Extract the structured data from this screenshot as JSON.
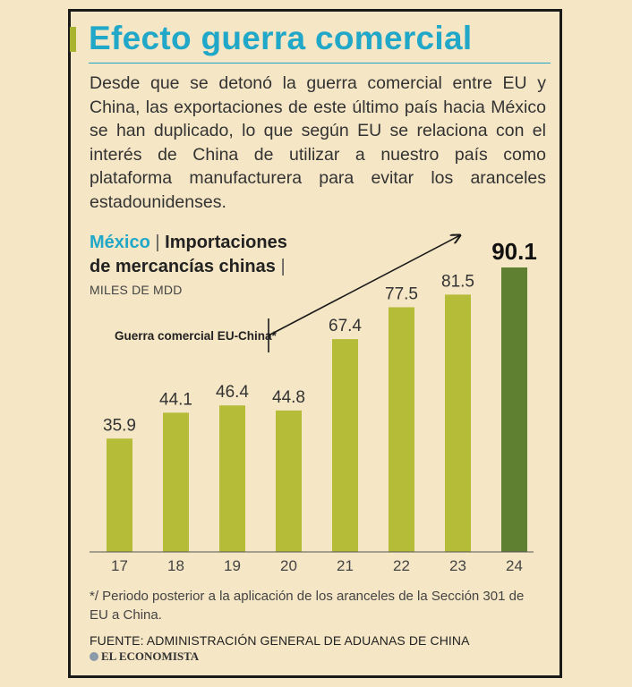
{
  "title": "Efecto guerra comercial",
  "intro": "Desde que se detonó la guerra comercial entre EU y China, las exportaciones de este último país hacia México se han duplicado, lo que según EU se relaciona con el interés de China de utilizar a nuestro país como plataforma manufacturera para evitar los aranceles estadounidenses.",
  "chart_header": {
    "country": "México",
    "separator": "|",
    "line1_rest": "Importaciones",
    "line2": "de mercancías chinas",
    "units": "MILES DE MDD"
  },
  "annotation": "Guerra comercial EU-China*",
  "footnote": "*/ Periodo posterior a la aplicación de los aranceles de la Sección 301 de EU a China.",
  "source": "FUENTE: ADMINISTRACIÓN GENERAL DE ADUANAS DE CHINA",
  "brand": "EL ECONOMISTA",
  "colors": {
    "bar": "#b4bc38",
    "bar_highlight": "#5f8030",
    "title": "#21a8c8",
    "background": "#f5e6c5"
  },
  "chart_data": {
    "type": "bar",
    "categories": [
      "17",
      "18",
      "19",
      "20",
      "21",
      "22",
      "23",
      "24"
    ],
    "values": [
      35.9,
      44.1,
      46.4,
      44.8,
      67.4,
      77.5,
      81.5,
      90.1
    ],
    "data_labels": [
      "35.9",
      "44.1",
      "46.4",
      "44.8",
      "67.4",
      "77.5",
      "81.5",
      "90.1"
    ],
    "highlight_index": 7,
    "ylim": [
      0,
      95
    ],
    "grid": false,
    "title": "",
    "xlabel": "",
    "ylabel": ""
  }
}
